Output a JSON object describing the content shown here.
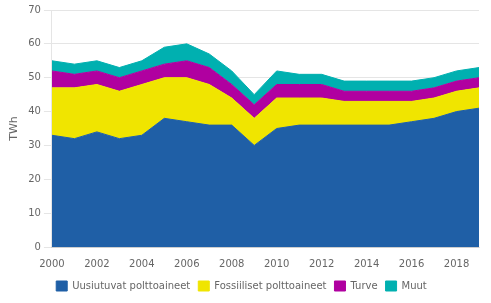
{
  "chart_data": {
    "type": "area",
    "stacked": true,
    "x": [
      2000,
      2001,
      2002,
      2003,
      2004,
      2005,
      2006,
      2007,
      2008,
      2009,
      2010,
      2011,
      2012,
      2013,
      2014,
      2015,
      2016,
      2017,
      2018,
      2019
    ],
    "series": [
      {
        "name": "Uusiutuvat polttoaineet",
        "color": "#1f5fa6",
        "values": [
          33,
          32,
          34,
          32,
          33,
          38,
          37,
          36,
          36,
          30,
          35,
          36,
          36,
          36,
          36,
          36,
          37,
          38,
          40,
          41
        ]
      },
      {
        "name": "Fossiiliset polttoaineet",
        "color": "#f0e500",
        "values": [
          14,
          15,
          14,
          14,
          15,
          12,
          13,
          12,
          8,
          8,
          9,
          8,
          8,
          7,
          7,
          7,
          6,
          6,
          6,
          6
        ]
      },
      {
        "name": "Turve",
        "color": "#b000a0",
        "values": [
          5,
          4,
          4,
          4,
          4,
          4,
          5,
          5,
          4,
          4,
          4,
          4,
          4,
          3,
          3,
          3,
          3,
          3,
          3,
          3
        ]
      },
      {
        "name": "Muut",
        "color": "#00b0b0",
        "values": [
          3,
          3,
          3,
          3,
          3,
          5,
          5,
          4,
          4,
          3,
          4,
          3,
          3,
          3,
          3,
          3,
          3,
          3,
          3,
          3
        ]
      }
    ],
    "ylabel": "TWh",
    "xlim": [
      2000,
      2019
    ],
    "xticks": [
      2000,
      2002,
      2004,
      2006,
      2008,
      2010,
      2012,
      2014,
      2016,
      2018
    ],
    "ylim": [
      0,
      70
    ],
    "yticks": [
      0,
      10,
      20,
      30,
      40,
      50,
      60,
      70
    ],
    "grid": "y",
    "legend": "bottom"
  }
}
